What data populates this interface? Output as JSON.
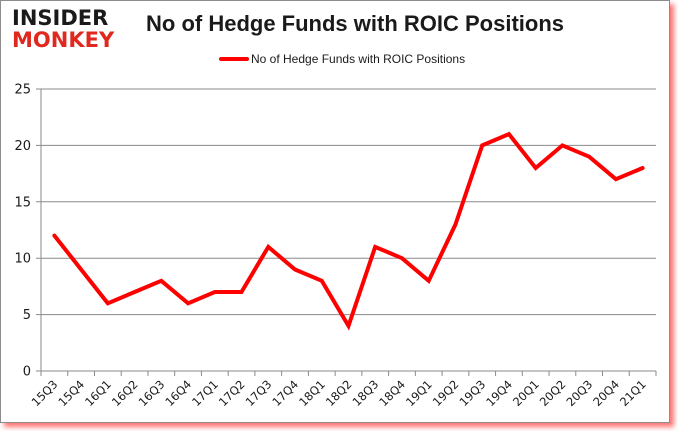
{
  "brand": {
    "line1": "INSIDER",
    "line2": "MONKEY",
    "line1_color": "#1a1a1a",
    "line2_color": "#e0281e"
  },
  "chart_data": {
    "type": "line",
    "title": "No of Hedge Funds with ROIC Positions",
    "xlabel": "",
    "ylabel": "",
    "ylim": [
      0,
      25
    ],
    "yticks": [
      0,
      5,
      10,
      15,
      20,
      25
    ],
    "grid": true,
    "legend_position": "top",
    "categories": [
      "15Q3",
      "15Q4",
      "16Q1",
      "16Q2",
      "16Q3",
      "16Q4",
      "17Q1",
      "17Q2",
      "17Q3",
      "17Q4",
      "18Q1",
      "18Q2",
      "18Q3",
      "18Q4",
      "19Q1",
      "19Q2",
      "19Q3",
      "19Q4",
      "20Q1",
      "20Q2",
      "20Q3",
      "20Q4",
      "21Q1"
    ],
    "series": [
      {
        "name": "No of Hedge Funds with ROIC Positions",
        "color": "#ff0000",
        "values": [
          12,
          9,
          6,
          7,
          8,
          6,
          7,
          7,
          11,
          9,
          8,
          4,
          11,
          10,
          8,
          13,
          20,
          21,
          18,
          20,
          19,
          17,
          18
        ]
      }
    ]
  }
}
